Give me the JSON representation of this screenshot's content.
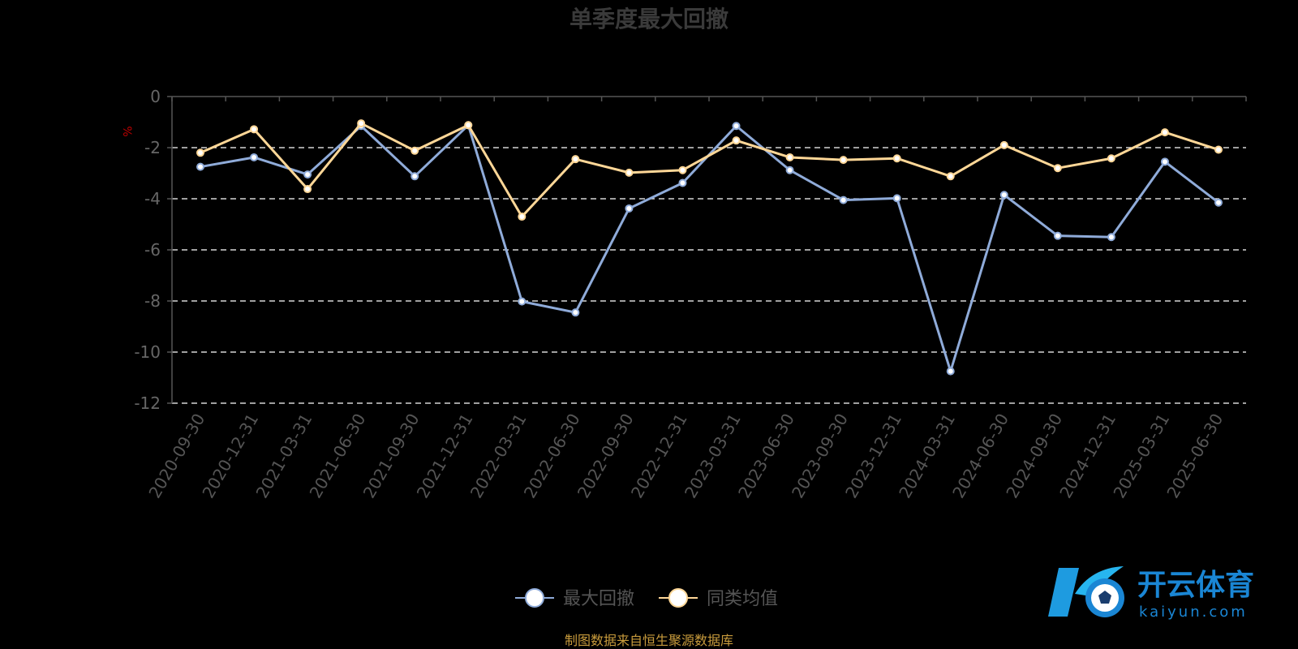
{
  "chart_data": {
    "type": "line",
    "title": "单季度最大回撤",
    "ylabel": "%",
    "ylim": [
      -12,
      0
    ],
    "yticks": [
      0,
      -2,
      -4,
      -6,
      -8,
      -10,
      -12
    ],
    "grid": true,
    "legend_position": "bottom-center",
    "categories": [
      "2020-09-30",
      "2020-12-31",
      "2021-03-31",
      "2021-06-30",
      "2021-09-30",
      "2021-12-31",
      "2022-03-31",
      "2022-06-30",
      "2022-09-30",
      "2022-12-31",
      "2023-03-31",
      "2023-06-30",
      "2023-09-30",
      "2023-12-31",
      "2024-03-31",
      "2024-06-30",
      "2024-09-30",
      "2024-12-31",
      "2025-03-31",
      "2025-06-30"
    ],
    "series": [
      {
        "name": "最大回撤",
        "color": "#8fabd9",
        "values": [
          -2.75,
          -2.38,
          -3.05,
          -1.15,
          -3.12,
          -1.12,
          -8.02,
          -8.45,
          -4.38,
          -3.38,
          -1.15,
          -2.88,
          -4.05,
          -3.98,
          -10.75,
          -3.85,
          -5.45,
          -5.5,
          -2.55,
          -4.15
        ]
      },
      {
        "name": "同类均值",
        "color": "#ffd797",
        "values": [
          -2.2,
          -1.28,
          -3.62,
          -1.05,
          -2.12,
          -1.12,
          -4.7,
          -2.45,
          -2.98,
          -2.88,
          -1.72,
          -2.38,
          -2.48,
          -2.42,
          -3.12,
          -1.9,
          -2.8,
          -2.42,
          -1.4,
          -2.08
        ]
      }
    ]
  },
  "source_note": "制图数据来自恒生聚源数据库",
  "watermark": {
    "name": "开云体育",
    "url_text": "kaiyun.com"
  }
}
